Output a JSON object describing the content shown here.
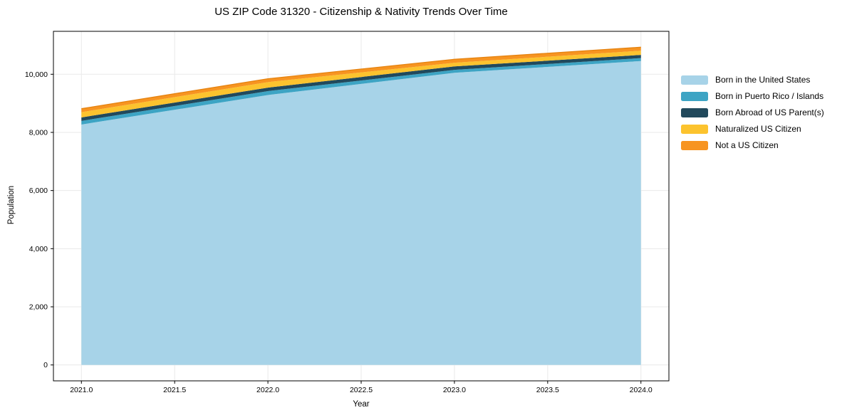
{
  "figure": {
    "title": "US ZIP Code 31320 - Citizenship & Nativity Trends Over Time",
    "xlabel": "Year",
    "ylabel": "Population"
  },
  "chart_data": {
    "type": "area",
    "stacked": true,
    "title": "US ZIP Code 31320 - Citizenship & Nativity Trends Over Time",
    "xlabel": "Year",
    "ylabel": "Population",
    "x": [
      2021,
      2022,
      2023,
      2024
    ],
    "series": [
      {
        "name": "Born in the United States",
        "color": "#a7d3e8",
        "values": [
          8270,
          9285,
          10050,
          10455
        ]
      },
      {
        "name": "Born in Puerto Rico / Islands",
        "color": "#3da4c4",
        "values": [
          125,
          135,
          100,
          100
        ]
      },
      {
        "name": "Born Abroad of US Parent(s)",
        "color": "#21495c",
        "values": [
          120,
          120,
          120,
          110
        ]
      },
      {
        "name": "Naturalized US Citizen",
        "color": "#fcc32e",
        "values": [
          180,
          190,
          125,
          145
        ]
      },
      {
        "name": "Not a US Citizen",
        "color": "#f79421",
        "values": [
          120,
          115,
          120,
          120
        ]
      }
    ],
    "totals": [
      8815,
      9845,
      10515,
      10930
    ],
    "x_ticks": {
      "values": [
        2021.0,
        2021.5,
        2022.0,
        2022.5,
        2023.0,
        2023.5,
        2024.0
      ],
      "labels": [
        "2021.0",
        "2021.5",
        "2022.0",
        "2022.5",
        "2023.0",
        "2023.5",
        "2024.0"
      ]
    },
    "y_ticks": {
      "values": [
        0,
        2000,
        4000,
        6000,
        8000,
        10000
      ],
      "labels": [
        "0",
        "2,000",
        "4,000",
        "6,000",
        "8,000",
        "10,000"
      ]
    },
    "x_range": [
      2020.85,
      2024.15
    ],
    "y_range": [
      -546.5,
      11476.5
    ],
    "grid": true,
    "legend_position": "right-outside"
  },
  "colors": {
    "grid": "#eaeaea",
    "spine": "#000000",
    "tick": "#000000",
    "text": "#000000",
    "total_edge": "#e5820f",
    "background": "#ffffff"
  }
}
